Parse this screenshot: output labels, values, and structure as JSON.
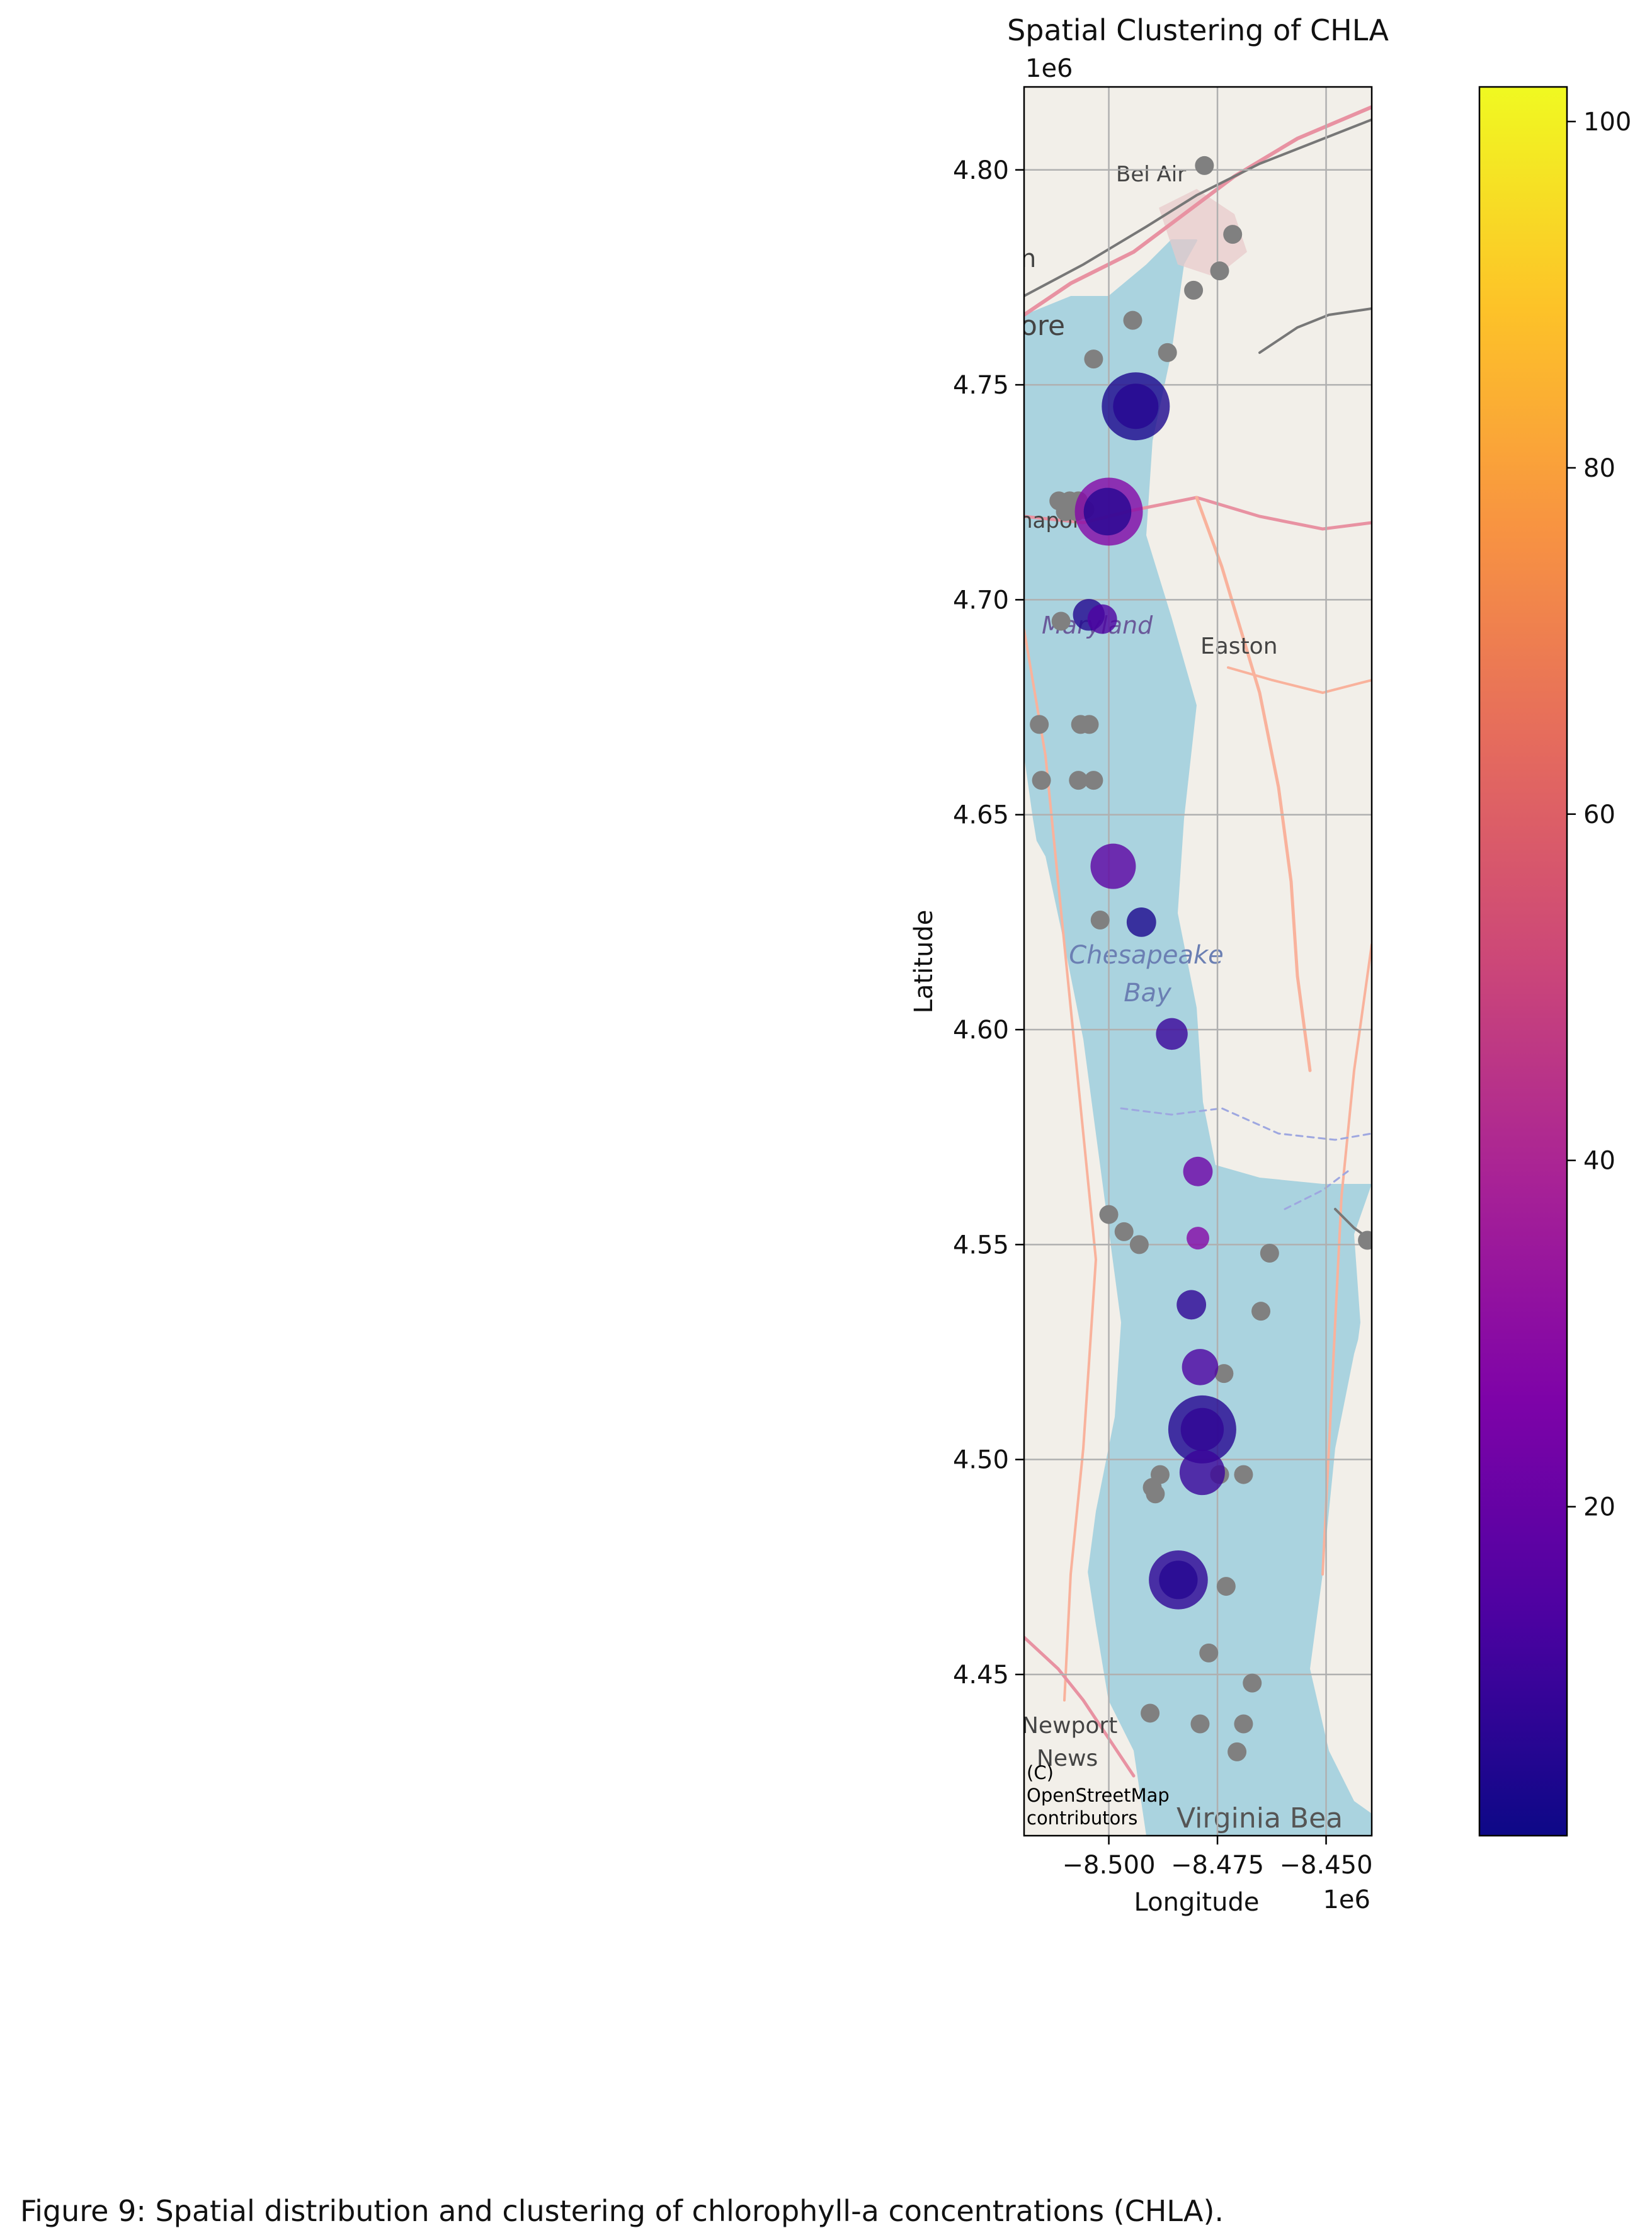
{
  "figure": {
    "title": "Spatial Clustering of CHLA",
    "caption": "Figure 9: Spatial distribution and clustering of chlorophyll-a concentrations (CHLA)."
  },
  "chart_data": {
    "type": "scatter",
    "title": "Spatial Clustering of CHLA",
    "xlabel": "Longitude",
    "ylabel": "Latitude",
    "x_offset_text": "1e6",
    "y_offset_text": "1e6",
    "xlim": [
      -8.5195,
      -8.4395
    ],
    "ylim": [
      4.4125,
      4.8193
    ],
    "x_ticks": [
      -8.5,
      -8.475,
      -8.45
    ],
    "x_tick_labels": [
      "−8.500",
      "−8.475",
      "−8.450"
    ],
    "y_ticks": [
      4.45,
      4.5,
      4.55,
      4.6,
      4.65,
      4.7,
      4.75,
      4.8
    ],
    "y_tick_labels": [
      "4.45",
      "4.50",
      "4.55",
      "4.60",
      "4.65",
      "4.70",
      "4.75",
      "4.80"
    ],
    "grid": true,
    "colormap": "plasma",
    "colorbar": {
      "min": 1,
      "max": 102,
      "ticks": [
        20,
        40,
        60,
        80,
        100
      ],
      "tick_labels": [
        "20",
        "40",
        "60",
        "80",
        "100"
      ]
    },
    "colored_points": [
      {
        "x": -8.4938,
        "y": 4.745,
        "value": 4,
        "size": 3.0
      },
      {
        "x": -8.4938,
        "y": 4.745,
        "value": 6,
        "size": 2.0
      },
      {
        "x": -8.5,
        "y": 4.7205,
        "value": 28,
        "size": 3.0
      },
      {
        "x": -8.5003,
        "y": 4.7205,
        "value": 6,
        "size": 2.1
      },
      {
        "x": -8.5046,
        "y": 4.6965,
        "value": 5,
        "size": 1.4
      },
      {
        "x": -8.5015,
        "y": 4.6955,
        "value": 14,
        "size": 1.3
      },
      {
        "x": -8.499,
        "y": 4.638,
        "value": 18,
        "size": 2.0
      },
      {
        "x": -8.4925,
        "y": 4.625,
        "value": 4,
        "size": 1.3
      },
      {
        "x": -8.4855,
        "y": 4.599,
        "value": 10,
        "size": 1.4
      },
      {
        "x": -8.4795,
        "y": 4.567,
        "value": 22,
        "size": 1.3
      },
      {
        "x": -8.4795,
        "y": 4.5515,
        "value": 28,
        "size": 1.0
      },
      {
        "x": -8.481,
        "y": 4.536,
        "value": 8,
        "size": 1.3
      },
      {
        "x": -8.479,
        "y": 4.5215,
        "value": 14,
        "size": 1.6
      },
      {
        "x": -8.4785,
        "y": 4.507,
        "value": 6,
        "size": 3.0
      },
      {
        "x": -8.4785,
        "y": 4.507,
        "value": 8,
        "size": 1.9
      },
      {
        "x": -8.4785,
        "y": 4.497,
        "value": 10,
        "size": 2.0
      },
      {
        "x": -8.484,
        "y": 4.472,
        "value": 8,
        "size": 2.6
      },
      {
        "x": -8.484,
        "y": 4.472,
        "value": 6,
        "size": 1.7
      }
    ],
    "noise_points": [
      {
        "x": -8.478,
        "y": 4.801
      },
      {
        "x": -8.4715,
        "y": 4.785
      },
      {
        "x": -8.4745,
        "y": 4.7765
      },
      {
        "x": -8.4805,
        "y": 4.772
      },
      {
        "x": -8.4945,
        "y": 4.765
      },
      {
        "x": -8.4865,
        "y": 4.7575
      },
      {
        "x": -8.5035,
        "y": 4.756
      },
      {
        "x": -8.5115,
        "y": 4.723
      },
      {
        "x": -8.509,
        "y": 4.723
      },
      {
        "x": -8.507,
        "y": 4.723
      },
      {
        "x": -8.51,
        "y": 4.7205
      },
      {
        "x": -8.5075,
        "y": 4.7205
      },
      {
        "x": -8.5055,
        "y": 4.721
      },
      {
        "x": -8.511,
        "y": 4.695
      },
      {
        "x": -8.516,
        "y": 4.671
      },
      {
        "x": -8.5065,
        "y": 4.671
      },
      {
        "x": -8.5045,
        "y": 4.671
      },
      {
        "x": -8.5155,
        "y": 4.658
      },
      {
        "x": -8.507,
        "y": 4.658
      },
      {
        "x": -8.5035,
        "y": 4.658
      },
      {
        "x": -8.502,
        "y": 4.6255
      },
      {
        "x": -8.5,
        "y": 4.557
      },
      {
        "x": -8.4965,
        "y": 4.553
      },
      {
        "x": -8.493,
        "y": 4.55
      },
      {
        "x": -8.4405,
        "y": 4.551
      },
      {
        "x": -8.463,
        "y": 4.548
      },
      {
        "x": -8.465,
        "y": 4.5345
      },
      {
        "x": -8.4735,
        "y": 4.52
      },
      {
        "x": -8.4882,
        "y": 4.4965
      },
      {
        "x": -8.49,
        "y": 4.4935
      },
      {
        "x": -8.4893,
        "y": 4.492
      },
      {
        "x": -8.4745,
        "y": 4.4965
      },
      {
        "x": -8.469,
        "y": 4.4965
      },
      {
        "x": -8.473,
        "y": 4.4705
      },
      {
        "x": -8.477,
        "y": 4.455
      },
      {
        "x": -8.467,
        "y": 4.448
      },
      {
        "x": -8.4905,
        "y": 4.441
      },
      {
        "x": -8.479,
        "y": 4.4385
      },
      {
        "x": -8.469,
        "y": 4.4385
      },
      {
        "x": -8.4705,
        "y": 4.432
      }
    ],
    "noise_color": "#808080"
  },
  "basemap": {
    "attribution": "(C)\nOpenStreetMap\ncontributors",
    "water_color": "#aad3df",
    "land_color": "#f2efe9",
    "labels": [
      {
        "text": "Bel Air",
        "kind": "city"
      },
      {
        "text": "ore",
        "kind": "city"
      },
      {
        "text": "n",
        "kind": "city"
      },
      {
        "text": "napol",
        "kind": "city"
      },
      {
        "text": "Maryland",
        "kind": "region"
      },
      {
        "text": "Easton",
        "kind": "city"
      },
      {
        "text": "Chesapeake",
        "kind": "water"
      },
      {
        "text": "Bay",
        "kind": "water"
      },
      {
        "text": "Newport",
        "kind": "city"
      },
      {
        "text": "News",
        "kind": "city"
      },
      {
        "text": "Virginia Bea",
        "kind": "city"
      }
    ]
  }
}
